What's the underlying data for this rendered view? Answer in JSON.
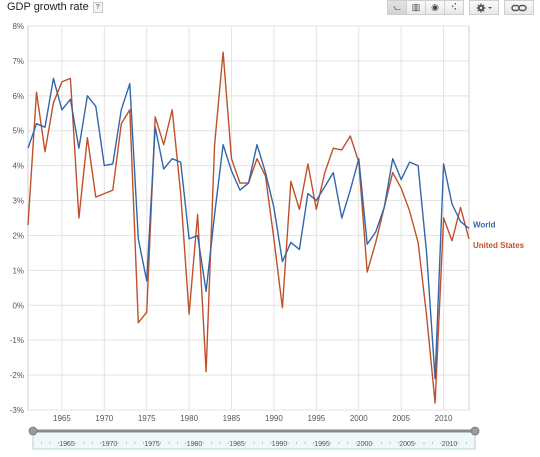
{
  "header": {
    "title": "GDP growth rate",
    "help_label": "?"
  },
  "toolbar": {
    "chart_types": [
      {
        "icon": "line-chart-icon",
        "glyph": "⦦"
      },
      {
        "icon": "bar-chart-icon",
        "glyph": "▥"
      },
      {
        "icon": "map-globe-icon",
        "glyph": "◉"
      },
      {
        "icon": "scatter-chart-icon",
        "glyph": "⠪"
      }
    ],
    "settings_icon": "gear-icon",
    "link_icon": "link-icon"
  },
  "chart_data": {
    "type": "line",
    "title": "GDP growth rate",
    "xlabel": "",
    "ylabel": "",
    "x": [
      1961,
      1962,
      1963,
      1964,
      1965,
      1966,
      1967,
      1968,
      1969,
      1970,
      1971,
      1972,
      1973,
      1974,
      1975,
      1976,
      1977,
      1978,
      1979,
      1980,
      1981,
      1982,
      1983,
      1984,
      1985,
      1986,
      1987,
      1988,
      1989,
      1990,
      1991,
      1992,
      1993,
      1994,
      1995,
      1996,
      1997,
      1998,
      1999,
      2000,
      2001,
      2002,
      2003,
      2004,
      2005,
      2006,
      2007,
      2008,
      2009,
      2010,
      2011,
      2012,
      2013
    ],
    "xlim": [
      1961,
      2013
    ],
    "ylim": [
      -3,
      8
    ],
    "yticks": [
      -3,
      -2,
      -1,
      0,
      1,
      2,
      3,
      4,
      5,
      6,
      7,
      8
    ],
    "ytick_labels": [
      "-3%",
      "-2%",
      "-1%",
      "0%",
      "1%",
      "2%",
      "3%",
      "4%",
      "5%",
      "6%",
      "7%",
      "8%"
    ],
    "xticks": [
      1965,
      1970,
      1975,
      1980,
      1985,
      1990,
      1995,
      2000,
      2005,
      2010
    ],
    "xtick_labels": [
      "1965",
      "1970",
      "1975",
      "1980",
      "1985",
      "1990",
      "1995",
      "2000",
      "2005",
      "2010"
    ],
    "grid": true,
    "legend_placement": "right",
    "series": [
      {
        "name": "World",
        "color": "#3366aa",
        "values": [
          4.5,
          5.2,
          5.1,
          6.5,
          5.6,
          5.9,
          4.5,
          6.0,
          5.7,
          4.0,
          4.05,
          5.6,
          6.35,
          1.9,
          0.7,
          5.1,
          3.9,
          4.2,
          4.1,
          1.9,
          2.0,
          0.4,
          2.6,
          4.6,
          3.85,
          3.3,
          3.5,
          4.6,
          3.8,
          2.8,
          1.25,
          1.8,
          1.6,
          3.2,
          3.0,
          3.4,
          3.8,
          2.5,
          3.3,
          4.2,
          1.75,
          2.1,
          2.8,
          4.2,
          3.6,
          4.1,
          4.0,
          1.5,
          -2.1,
          4.05,
          2.9,
          2.4,
          2.2
        ]
      },
      {
        "name": "United States",
        "color": "#c0502a",
        "values": [
          2.3,
          6.1,
          4.4,
          5.8,
          6.4,
          6.5,
          2.5,
          4.8,
          3.1,
          3.2,
          3.3,
          5.2,
          5.6,
          -0.5,
          -0.2,
          5.4,
          4.6,
          5.6,
          3.2,
          -0.25,
          2.6,
          -1.9,
          4.6,
          7.25,
          4.2,
          3.5,
          3.5,
          4.2,
          3.7,
          1.9,
          -0.07,
          3.55,
          2.75,
          4.05,
          2.75,
          3.8,
          4.5,
          4.45,
          4.85,
          4.1,
          0.95,
          1.8,
          2.8,
          3.8,
          3.35,
          2.7,
          1.8,
          -0.3,
          -2.8,
          2.5,
          1.85,
          2.8,
          1.9
        ]
      }
    ]
  },
  "timeline": {
    "year_labels": [
      "1965",
      "1970",
      "1975",
      "1980",
      "1985",
      "1990",
      "1995",
      "2000",
      "2005",
      "2010"
    ],
    "range": [
      1961,
      2013
    ]
  }
}
